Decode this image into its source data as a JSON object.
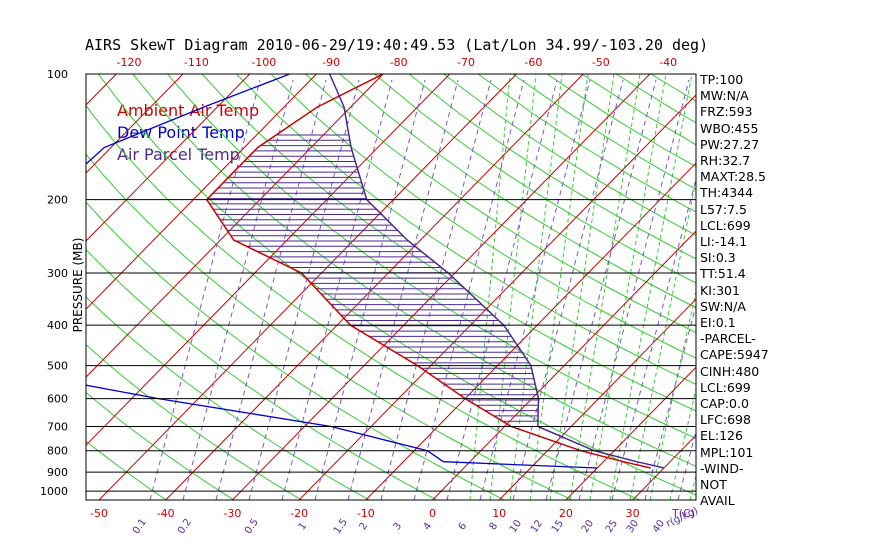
{
  "title": "AIRS SkewT Diagram 2010-06-29/19:40:49.53 (Lat/Lon 34.99/-103.20 deg)",
  "legend": [
    {
      "label": "Ambient Air Temp",
      "color": "#cc0000"
    },
    {
      "label": "Dew Point Temp",
      "color": "#0000cc"
    },
    {
      "label": "Air Parcel Temp",
      "color": "#4b2a8c"
    }
  ],
  "stats": [
    "TP:100",
    "MW:N/A",
    "FRZ:593",
    "WBO:455",
    "PW:27.27",
    "RH:32.7",
    "MAXT:28.5",
    "TH:4344",
    "L57:7.5",
    "LCL:699",
    "LI:-14.1",
    "SI:0.3",
    "TT:51.4",
    "KI:301",
    "SW:N/A",
    "EI:0.1",
    "-PARCEL-",
    "CAPE:5947",
    "CINH:480",
    "LCL:699",
    "CAP:0.0",
    "LFC:698",
    "EL:126",
    "MPL:101",
    "-WIND-",
    "NOT",
    "AVAIL"
  ],
  "chart_data": {
    "type": "line",
    "ylabel": "PRESSURE (MB)",
    "pressure_ticks": [
      100,
      200,
      300,
      400,
      500,
      600,
      700,
      800,
      900,
      1000
    ],
    "bottom_temp_ticks": [
      -50,
      -40,
      -30,
      -20,
      -10,
      0,
      10,
      20,
      30
    ],
    "bottom_temp_label": "T(C)",
    "top_temp_ticks": [
      -120,
      -110,
      -100,
      -90,
      -80,
      -70,
      -60,
      -50,
      -40
    ],
    "mixing_ratio_ticks": [
      "0.1",
      "0.2",
      "0.5",
      "1",
      "1.5",
      "2",
      "3",
      "4",
      "6",
      "8",
      "10",
      "12",
      "15",
      "20",
      "25",
      "30",
      "40"
    ],
    "mixing_ratio_label": "r(g/kg)",
    "series": [
      {
        "name": "Ambient Air Temp",
        "color": "#cc0000",
        "points": [
          [
            100,
            -70
          ],
          [
            120,
            -75
          ],
          [
            150,
            -78
          ],
          [
            200,
            -78
          ],
          [
            250,
            -68
          ],
          [
            300,
            -53
          ],
          [
            400,
            -38
          ],
          [
            500,
            -22
          ],
          [
            600,
            -10
          ],
          [
            700,
            1
          ],
          [
            800,
            15
          ],
          [
            850,
            23
          ],
          [
            880,
            28
          ]
        ]
      },
      {
        "name": "Dew Point Temp",
        "color": "#0000cc",
        "points": [
          [
            100,
            -84
          ],
          [
            120,
            -92
          ],
          [
            150,
            -101
          ],
          [
            200,
            -102
          ],
          [
            250,
            -97
          ],
          [
            300,
            -93
          ],
          [
            400,
            -82
          ],
          [
            500,
            -74
          ],
          [
            550,
            -71
          ],
          [
            600,
            -56
          ],
          [
            700,
            -26
          ],
          [
            800,
            -8
          ],
          [
            850,
            -4
          ],
          [
            880,
            20
          ]
        ]
      },
      {
        "name": "Air Parcel Temp",
        "color": "#4b2a8c",
        "points": [
          [
            100,
            -78
          ],
          [
            120,
            -71
          ],
          [
            150,
            -64
          ],
          [
            200,
            -54
          ],
          [
            250,
            -42
          ],
          [
            300,
            -31
          ],
          [
            400,
            -15
          ],
          [
            500,
            -5
          ],
          [
            600,
            1
          ],
          [
            700,
            5
          ],
          [
            800,
            17
          ],
          [
            850,
            25
          ],
          [
            880,
            30
          ]
        ]
      }
    ]
  }
}
